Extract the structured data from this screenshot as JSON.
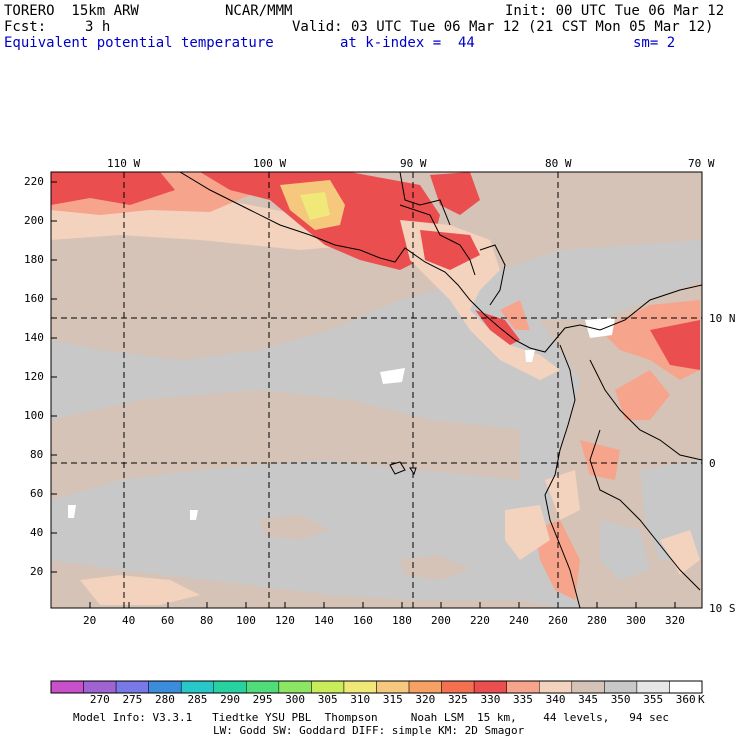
{
  "header": {
    "model": "TORERO  15km ARW",
    "center": "NCAR/MMM",
    "init": "Init: 00 UTC Tue 06 Mar 12",
    "fcst_label": "Fcst:",
    "fcst_value": "3 h",
    "valid": "Valid: 03 UTC Tue 06 Mar 12 (21 CST Mon 05 Mar 12)",
    "field": "Equivalent potential temperature",
    "level": "at k-index =  44",
    "smoothing": "sm= 2"
  },
  "top_lon_labels": [
    "110 W",
    "100 W",
    "90 W",
    "80 W",
    "70 W"
  ],
  "right_lat_labels": [
    "10 N",
    "0",
    "10 S"
  ],
  "y_ticks": [
    "220",
    "200",
    "180",
    "160",
    "140",
    "120",
    "100",
    "80",
    "60",
    "40",
    "20"
  ],
  "x_ticks": [
    "20",
    "40",
    "60",
    "80",
    "100",
    "120",
    "140",
    "160",
    "180",
    "200",
    "220",
    "240",
    "260",
    "280",
    "300",
    "320"
  ],
  "colorbar": {
    "labels": [
      "270",
      "275",
      "280",
      "285",
      "290",
      "295",
      "300",
      "305",
      "310",
      "315",
      "320",
      "325",
      "330",
      "335",
      "340",
      "345",
      "350",
      "355",
      "360"
    ],
    "unit": "K",
    "colors": [
      "#c850c8",
      "#a064d2",
      "#7878e6",
      "#3c8cdc",
      "#28c8c8",
      "#28d2a0",
      "#50dc78",
      "#8ce664",
      "#c8ec5a",
      "#f0e878",
      "#f6c87e",
      "#f7a064",
      "#f37050",
      "#eb4e4e",
      "#f7a48c",
      "#f3d2be",
      "#d4c3b6",
      "#c8c8c8",
      "#e6e6e6",
      "#ffffff"
    ]
  },
  "footer": {
    "line1": "Model Info: V3.3.1   Tiedtke YSU PBL  Thompson     Noah LSM  15 km,    44 levels,   94 sec",
    "line2": "LW: Godd SW: Goddard DIFF: simple KM: 2D Smagor"
  }
}
